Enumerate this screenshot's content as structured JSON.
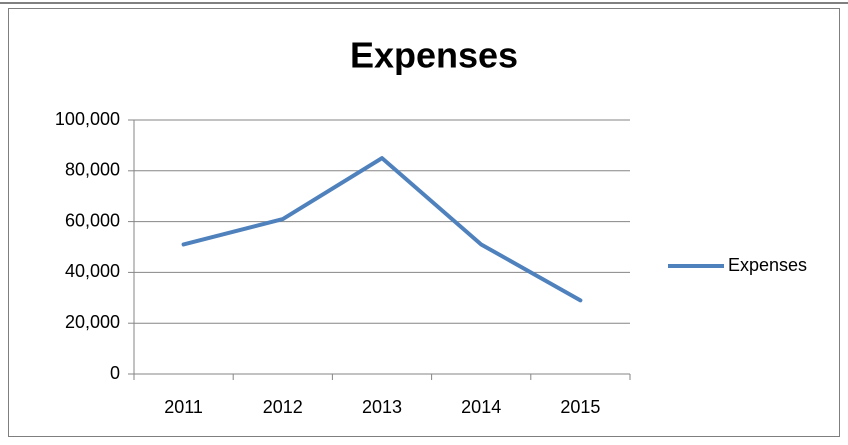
{
  "chart_data": {
    "type": "line",
    "title": "Expenses",
    "categories": [
      "2011",
      "2012",
      "2013",
      "2014",
      "2015"
    ],
    "series": [
      {
        "name": "Expenses",
        "color": "#4f81bd",
        "values": [
          51000,
          61000,
          85000,
          51000,
          29000
        ]
      }
    ],
    "ylim": [
      0,
      100000
    ],
    "yticks": [
      0,
      {
        "value": 20000,
        "label": "20,000"
      },
      {
        "value": 40000,
        "label": "40,000"
      },
      {
        "value": 60000,
        "label": "60,000"
      },
      {
        "value": 80000,
        "label": "80,000"
      },
      {
        "value": 100000,
        "label": "100,000"
      }
    ],
    "grid": true,
    "legend": "right"
  }
}
